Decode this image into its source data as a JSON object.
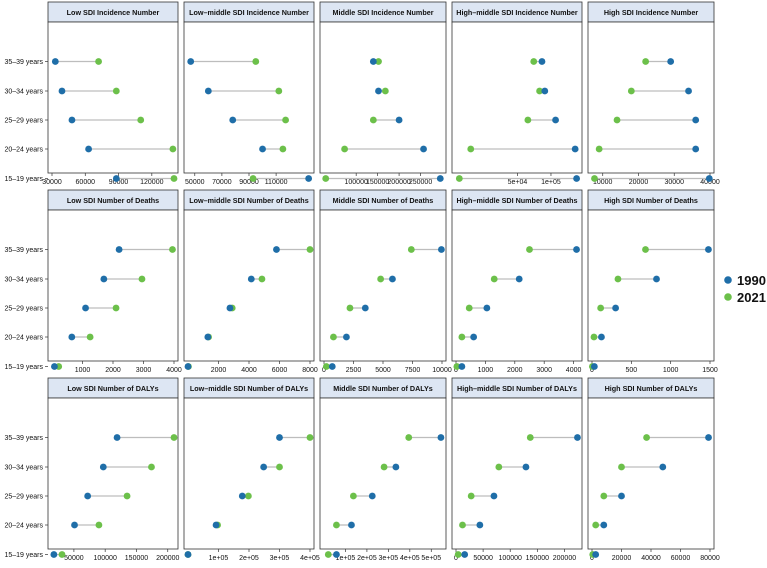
{
  "legend": {
    "entries": [
      {
        "label": "1990",
        "color": "#1f6ea8"
      },
      {
        "label": "2021",
        "color": "#6cc04a"
      }
    ]
  },
  "chart_data": {
    "type": "dumbbell",
    "categories": [
      "35–39 years",
      "30–34 years",
      "25–29 years",
      "20–24 years",
      "15–19 years"
    ],
    "series_names": [
      "1990",
      "2021"
    ],
    "series_colors": [
      "#1f6ea8",
      "#6cc04a"
    ],
    "connector_color": "#bdbdbd",
    "panels": [
      {
        "title": "Low SDI Incidence Number",
        "xlim": [
          30000,
          140000
        ],
        "xscale": "linear",
        "ticks": [
          30000,
          60000,
          90000,
          120000
        ],
        "tick_labels": [
          "30000",
          "60000",
          "90000",
          "120000"
        ],
        "values_1990": [
          33000,
          39000,
          48000,
          63000,
          88000
        ],
        "values_2021": [
          72000,
          88000,
          110000,
          139000,
          140000
        ]
      },
      {
        "title": "Low–middle SDI Incidence Number",
        "xlim": [
          45000,
          135000
        ],
        "xscale": "linear",
        "ticks": [
          50000,
          70000,
          90000,
          110000
        ],
        "tick_labels": [
          "50000",
          "70000",
          "90000",
          "110000"
        ],
        "values_1990": [
          47000,
          60000,
          78000,
          100000,
          134000
        ],
        "values_2021": [
          95000,
          112000,
          117000,
          115000,
          93000
        ]
      },
      {
        "title": "Middle SDI Incidence Number",
        "xlim": [
          25000,
          300000
        ],
        "xscale": "linear",
        "ticks": [
          100000,
          150000,
          200000,
          250000
        ],
        "tick_labels": [
          "100000",
          "150000",
          "200000",
          "250000"
        ],
        "values_1990": [
          140000,
          152000,
          200000,
          257000,
          296000
        ],
        "values_2021": [
          152000,
          168000,
          140000,
          73000,
          29000
        ]
      },
      {
        "title": "High–middle SDI Incidence Number",
        "xlim": [
          14000,
          175000
        ],
        "xscale": "log",
        "ticks": [
          50000,
          100000
        ],
        "tick_labels": [
          "5e+04",
          "1e+05"
        ],
        "values_1990": [
          83000,
          88000,
          110000,
          165000,
          170000
        ],
        "values_2021": [
          70000,
          79000,
          62000,
          19000,
          15000
        ]
      },
      {
        "title": "High SDI Incidence Number",
        "xlim": [
          7000,
          40000
        ],
        "xscale": "linear",
        "ticks": [
          10000,
          20000,
          30000,
          40000
        ],
        "tick_labels": [
          "10000",
          "20000",
          "30000",
          "40000"
        ],
        "values_1990": [
          29000,
          34000,
          36000,
          36000,
          39800
        ],
        "values_2021": [
          22000,
          18000,
          14000,
          9000,
          7700
        ]
      },
      {
        "title": "Low SDI Number of Deaths",
        "xlim": [
          0,
          4000
        ],
        "xscale": "linear",
        "ticks": [
          1000,
          2000,
          3000,
          4000
        ],
        "tick_labels": [
          "1000",
          "2000",
          "3000",
          "4000"
        ],
        "values_1990": [
          2200,
          1700,
          1100,
          650,
          80
        ],
        "values_2021": [
          3950,
          2950,
          2100,
          1250,
          220
        ]
      },
      {
        "title": "Low–middle SDI Number of Deaths",
        "xlim": [
          0,
          8000
        ],
        "xscale": "linear",
        "ticks": [
          2000,
          4000,
          6000,
          8000
        ],
        "tick_labels": [
          "2000",
          "4000",
          "6000",
          "8000"
        ],
        "values_1990": [
          5800,
          4150,
          2750,
          1300,
          0
        ],
        "values_2021": [
          8000,
          4850,
          2900,
          1350,
          30
        ]
      },
      {
        "title": "Middle SDI Number of Deaths",
        "xlim": [
          0,
          10000
        ],
        "xscale": "linear",
        "ticks": [
          0,
          2500,
          5000,
          7500,
          10000
        ],
        "tick_labels": [
          "0",
          "2500",
          "5000",
          "7500",
          "10000"
        ],
        "values_1990": [
          9950,
          5800,
          3500,
          1900,
          700
        ],
        "values_2021": [
          7400,
          4800,
          2200,
          800,
          200
        ]
      },
      {
        "title": "High–middle SDI Number of Deaths",
        "xlim": [
          0,
          4150
        ],
        "xscale": "linear",
        "ticks": [
          0,
          1000,
          2000,
          3000,
          4000
        ],
        "tick_labels": [
          "0",
          "1000",
          "2000",
          "3000",
          "4000"
        ],
        "values_1990": [
          4100,
          2150,
          1050,
          600,
          200
        ],
        "values_2021": [
          2500,
          1300,
          450,
          200,
          30
        ]
      },
      {
        "title": "High SDI Number of Deaths",
        "xlim": [
          0,
          1500
        ],
        "xscale": "linear",
        "ticks": [
          0,
          500,
          1000,
          1500
        ],
        "tick_labels": [
          "0",
          "500",
          "1000",
          "1500"
        ],
        "values_1990": [
          1480,
          820,
          300,
          120,
          30
        ],
        "values_2021": [
          680,
          330,
          110,
          25,
          5
        ]
      },
      {
        "title": "Low SDI Number of DALYs",
        "xlim": [
          15000,
          210000
        ],
        "xscale": "linear",
        "ticks": [
          50000,
          100000,
          150000,
          200000
        ],
        "tick_labels": [
          "50000",
          "100000",
          "150000",
          "200000"
        ],
        "values_1990": [
          119000,
          97000,
          72000,
          51000,
          18000
        ],
        "values_2021": [
          210000,
          174000,
          135000,
          90000,
          31000
        ]
      },
      {
        "title": "Low–middle SDI Number of DALYs",
        "xlim": [
          0,
          400000
        ],
        "xscale": "linear",
        "ticks": [
          100000,
          200000,
          300000,
          400000
        ],
        "tick_labels": [
          "1e+05",
          "2e+05",
          "3e+05",
          "4e+05"
        ],
        "values_1990": [
          300000,
          248000,
          178000,
          92000,
          0
        ],
        "values_2021": [
          400000,
          300000,
          198000,
          97000,
          0
        ]
      },
      {
        "title": "Middle SDI Number of DALYs",
        "xlim": [
          0,
          550000
        ],
        "xscale": "linear",
        "ticks": [
          100000,
          200000,
          300000,
          400000,
          500000
        ],
        "tick_labels": [
          "1e+05",
          "2e+05",
          "3e+05",
          "4e+05",
          "5e+05"
        ],
        "values_1990": [
          545000,
          335000,
          225000,
          128000,
          58000
        ],
        "values_2021": [
          395000,
          280000,
          137000,
          58000,
          20000
        ]
      },
      {
        "title": "High–middle SDI Number of DALYs",
        "xlim": [
          0,
          225000
        ],
        "xscale": "linear",
        "ticks": [
          0,
          50000,
          100000,
          150000,
          200000
        ],
        "tick_labels": [
          "0",
          "50000",
          "100000",
          "150000",
          "200000"
        ],
        "values_1990": [
          224000,
          129000,
          70000,
          44000,
          16000
        ],
        "values_2021": [
          137000,
          79000,
          28000,
          12000,
          4000
        ]
      },
      {
        "title": "High SDI Number of DALYs",
        "xlim": [
          0,
          80000
        ],
        "xscale": "linear",
        "ticks": [
          0,
          20000,
          40000,
          60000,
          80000
        ],
        "tick_labels": [
          "0",
          "20000",
          "40000",
          "60000",
          "80000"
        ],
        "values_1990": [
          79000,
          48000,
          20000,
          8000,
          2500
        ],
        "values_2021": [
          37000,
          20000,
          8000,
          2500,
          500
        ]
      }
    ]
  }
}
